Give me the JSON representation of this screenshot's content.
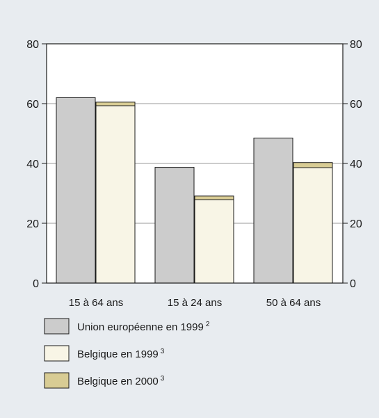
{
  "chart_data": {
    "type": "bar",
    "categories": [
      "15 à 64 ans",
      "15 à 24 ans",
      "50 à 64 ans"
    ],
    "ylim": [
      0,
      80
    ],
    "yticks": [
      0,
      20,
      40,
      60,
      80
    ],
    "grid": true,
    "legend_position": "bottom-left",
    "series": [
      {
        "name": "Union européenne en 1999",
        "superscript": "2",
        "values": [
          62,
          38.7,
          48.5
        ],
        "color": "#cccccc"
      },
      {
        "name": "Belgique en 1999",
        "superscript": "3",
        "values": [
          59.3,
          27.9,
          38.6
        ],
        "color": "#f8f5e6"
      },
      {
        "name": "Belgique en 2000",
        "superscript": "3",
        "values": [
          60.5,
          29.1,
          40.3
        ],
        "color": "#d8cc94"
      }
    ]
  }
}
